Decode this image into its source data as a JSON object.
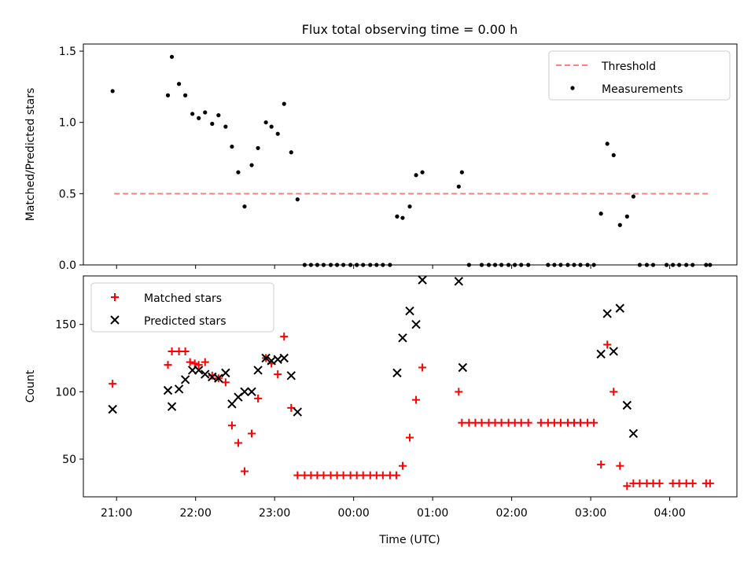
{
  "chart_data": {
    "title": "Flux total observing time = 0.00 h",
    "xlabel": "Time (UTC)",
    "x_ticks": [
      "21:00",
      "22:00",
      "23:00",
      "00:00",
      "01:00",
      "02:00",
      "03:00",
      "04:00"
    ],
    "x_tick_hours": [
      21,
      22,
      23,
      24,
      25,
      26,
      27,
      28
    ],
    "xlim_hours": [
      20.58,
      28.85
    ],
    "panels": [
      {
        "type": "scatter",
        "ylabel": "Matched/Predicted stars",
        "ylim": [
          0,
          1.55
        ],
        "yticks": [
          0.0,
          0.5,
          1.0,
          1.5
        ],
        "ytick_labels": [
          "0.0",
          "0.5",
          "1.0",
          "1.5"
        ],
        "legend_position": "upper right",
        "threshold": {
          "name": "Threshold",
          "y": 0.5,
          "x_range": [
            20.97,
            28.52
          ],
          "color": "#ff8080"
        },
        "series": [
          {
            "name": "Measurements",
            "marker": "dot",
            "color": "#000000",
            "points": [
              [
                20.95,
                1.22
              ],
              [
                21.65,
                1.19
              ],
              [
                21.7,
                1.46
              ],
              [
                21.79,
                1.27
              ],
              [
                21.87,
                1.19
              ],
              [
                21.96,
                1.06
              ],
              [
                22.04,
                1.03
              ],
              [
                22.12,
                1.07
              ],
              [
                22.21,
                0.99
              ],
              [
                22.29,
                1.05
              ],
              [
                22.38,
                0.97
              ],
              [
                22.46,
                0.83
              ],
              [
                22.54,
                0.65
              ],
              [
                22.62,
                0.41
              ],
              [
                22.71,
                0.7
              ],
              [
                22.79,
                0.82
              ],
              [
                22.89,
                1.0
              ],
              [
                22.96,
                0.97
              ],
              [
                23.04,
                0.92
              ],
              [
                23.12,
                1.13
              ],
              [
                23.21,
                0.79
              ],
              [
                23.29,
                0.46
              ],
              [
                23.38,
                0
              ],
              [
                23.46,
                0
              ],
              [
                23.54,
                0
              ],
              [
                23.62,
                0
              ],
              [
                23.71,
                0
              ],
              [
                23.79,
                0
              ],
              [
                23.87,
                0
              ],
              [
                23.96,
                0
              ],
              [
                24.04,
                0
              ],
              [
                24.12,
                0
              ],
              [
                24.21,
                0
              ],
              [
                24.29,
                0
              ],
              [
                24.37,
                0
              ],
              [
                24.46,
                0
              ],
              [
                24.55,
                0.34
              ],
              [
                24.62,
                0.33
              ],
              [
                24.71,
                0.41
              ],
              [
                24.79,
                0.63
              ],
              [
                24.87,
                0.65
              ],
              [
                25.33,
                0.55
              ],
              [
                25.37,
                0.65
              ],
              [
                25.46,
                0
              ],
              [
                25.62,
                0
              ],
              [
                25.71,
                0
              ],
              [
                25.79,
                0
              ],
              [
                25.87,
                0
              ],
              [
                25.96,
                0
              ],
              [
                26.04,
                0
              ],
              [
                26.12,
                0
              ],
              [
                26.21,
                0
              ],
              [
                26.46,
                0
              ],
              [
                26.54,
                0
              ],
              [
                26.62,
                0
              ],
              [
                26.71,
                0
              ],
              [
                26.79,
                0
              ],
              [
                26.87,
                0
              ],
              [
                26.96,
                0
              ],
              [
                27.04,
                0
              ],
              [
                27.13,
                0.36
              ],
              [
                27.21,
                0.85
              ],
              [
                27.29,
                0.77
              ],
              [
                27.37,
                0.28
              ],
              [
                27.46,
                0.34
              ],
              [
                27.54,
                0.48
              ],
              [
                27.62,
                0
              ],
              [
                27.71,
                0
              ],
              [
                27.79,
                0
              ],
              [
                27.96,
                0
              ],
              [
                28.04,
                0
              ],
              [
                28.12,
                0
              ],
              [
                28.21,
                0
              ],
              [
                28.29,
                0
              ],
              [
                28.46,
                0
              ],
              [
                28.51,
                0
              ]
            ]
          }
        ]
      },
      {
        "type": "scatter",
        "ylabel": "Count",
        "ylim": [
          22,
          186
        ],
        "yticks": [
          50,
          100,
          150
        ],
        "ytick_labels": [
          "50",
          "100",
          "150"
        ],
        "legend_position": "upper left",
        "series": [
          {
            "name": "Matched stars",
            "marker": "plus",
            "color": "#ff0000",
            "points": [
              [
                20.95,
                106
              ],
              [
                21.65,
                120
              ],
              [
                21.7,
                130
              ],
              [
                21.79,
                130
              ],
              [
                21.87,
                130
              ],
              [
                21.93,
                122
              ],
              [
                21.99,
                121
              ],
              [
                22.04,
                120
              ],
              [
                22.12,
                122
              ],
              [
                22.21,
                112
              ],
              [
                22.29,
                110
              ],
              [
                22.38,
                107
              ],
              [
                22.46,
                75
              ],
              [
                22.54,
                62
              ],
              [
                22.62,
                41
              ],
              [
                22.71,
                69
              ],
              [
                22.79,
                95
              ],
              [
                22.89,
                125
              ],
              [
                22.96,
                121
              ],
              [
                23.04,
                113
              ],
              [
                23.12,
                141
              ],
              [
                23.21,
                88
              ],
              [
                23.29,
                38
              ],
              [
                23.38,
                38
              ],
              [
                23.46,
                38
              ],
              [
                23.54,
                38
              ],
              [
                23.62,
                38
              ],
              [
                23.71,
                38
              ],
              [
                23.79,
                38
              ],
              [
                23.87,
                38
              ],
              [
                23.96,
                38
              ],
              [
                24.04,
                38
              ],
              [
                24.12,
                38
              ],
              [
                24.21,
                38
              ],
              [
                24.29,
                38
              ],
              [
                24.37,
                38
              ],
              [
                24.46,
                38
              ],
              [
                24.54,
                38
              ],
              [
                24.62,
                45
              ],
              [
                24.71,
                66
              ],
              [
                24.79,
                94
              ],
              [
                24.87,
                118
              ],
              [
                25.33,
                100
              ],
              [
                25.37,
                77
              ],
              [
                25.46,
                77
              ],
              [
                25.54,
                77
              ],
              [
                25.62,
                77
              ],
              [
                25.71,
                77
              ],
              [
                25.79,
                77
              ],
              [
                25.87,
                77
              ],
              [
                25.96,
                77
              ],
              [
                26.04,
                77
              ],
              [
                26.12,
                77
              ],
              [
                26.21,
                77
              ],
              [
                26.37,
                77
              ],
              [
                26.46,
                77
              ],
              [
                26.54,
                77
              ],
              [
                26.62,
                77
              ],
              [
                26.71,
                77
              ],
              [
                26.79,
                77
              ],
              [
                26.87,
                77
              ],
              [
                26.96,
                77
              ],
              [
                27.04,
                77
              ],
              [
                27.13,
                46
              ],
              [
                27.21,
                135
              ],
              [
                27.29,
                100
              ],
              [
                27.37,
                45
              ],
              [
                27.46,
                30
              ],
              [
                27.54,
                32
              ],
              [
                27.62,
                32
              ],
              [
                27.71,
                32
              ],
              [
                27.79,
                32
              ],
              [
                27.87,
                32
              ],
              [
                28.04,
                32
              ],
              [
                28.12,
                32
              ],
              [
                28.21,
                32
              ],
              [
                28.29,
                32
              ],
              [
                28.46,
                32
              ],
              [
                28.51,
                32
              ]
            ]
          },
          {
            "name": "Predicted stars",
            "marker": "x",
            "color": "#000000",
            "points": [
              [
                20.95,
                87
              ],
              [
                21.65,
                101
              ],
              [
                21.7,
                89
              ],
              [
                21.79,
                102
              ],
              [
                21.87,
                109
              ],
              [
                21.96,
                116
              ],
              [
                22.04,
                116
              ],
              [
                22.12,
                113
              ],
              [
                22.21,
                111
              ],
              [
                22.29,
                110
              ],
              [
                22.38,
                114
              ],
              [
                22.46,
                91
              ],
              [
                22.54,
                96
              ],
              [
                22.62,
                100
              ],
              [
                22.71,
                100
              ],
              [
                22.79,
                116
              ],
              [
                22.89,
                125
              ],
              [
                22.96,
                123
              ],
              [
                23.04,
                124
              ],
              [
                23.12,
                125
              ],
              [
                23.21,
                112
              ],
              [
                23.29,
                85
              ],
              [
                24.55,
                114
              ],
              [
                24.62,
                140
              ],
              [
                24.71,
                160
              ],
              [
                24.79,
                150
              ],
              [
                24.87,
                183
              ],
              [
                25.33,
                182
              ],
              [
                25.38,
                118
              ],
              [
                27.13,
                128
              ],
              [
                27.21,
                158
              ],
              [
                27.29,
                130
              ],
              [
                27.37,
                162
              ],
              [
                27.46,
                90
              ],
              [
                27.54,
                69
              ]
            ]
          }
        ]
      }
    ]
  }
}
